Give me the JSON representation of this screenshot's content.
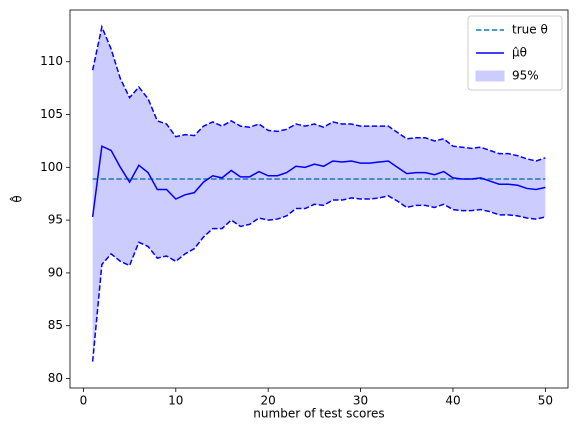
{
  "chart_data": {
    "type": "line",
    "x_label": "number of test scores",
    "y_label": "θ̂",
    "x": [
      1,
      2,
      3,
      4,
      5,
      6,
      7,
      8,
      9,
      10,
      11,
      12,
      13,
      14,
      15,
      16,
      17,
      18,
      19,
      20,
      21,
      22,
      23,
      24,
      25,
      26,
      27,
      28,
      29,
      30,
      31,
      32,
      33,
      34,
      35,
      36,
      37,
      38,
      39,
      40,
      41,
      42,
      43,
      44,
      45,
      46,
      47,
      48,
      49,
      50
    ],
    "series": [
      {
        "name": "true θ",
        "type": "hline",
        "value": 98.9,
        "color": "#1f77b4"
      },
      {
        "name": "μ̂θ",
        "type": "line",
        "color": "#0000ff",
        "values": [
          95.3,
          102.0,
          101.6,
          100.0,
          98.6,
          100.2,
          99.5,
          97.9,
          97.9,
          97.0,
          97.4,
          97.6,
          98.6,
          99.2,
          99.0,
          99.7,
          99.1,
          99.1,
          99.6,
          99.2,
          99.2,
          99.5,
          100.1,
          100.0,
          100.3,
          100.1,
          100.6,
          100.5,
          100.6,
          100.4,
          100.4,
          100.5,
          100.6,
          100.0,
          99.4,
          99.5,
          99.5,
          99.3,
          99.6,
          99.0,
          98.9,
          98.9,
          99.0,
          98.7,
          98.4,
          98.4,
          98.3,
          98.0,
          97.9,
          98.1
        ]
      },
      {
        "name": "95%",
        "type": "band",
        "color": "#ccccff",
        "edge_color": "#0000ff",
        "upper": [
          109.2,
          113.3,
          111.2,
          108.4,
          106.6,
          107.6,
          106.5,
          104.4,
          104.1,
          102.9,
          103.1,
          103.0,
          103.9,
          104.3,
          103.9,
          104.4,
          103.9,
          103.8,
          104.1,
          103.5,
          103.4,
          103.6,
          104.1,
          103.9,
          104.1,
          103.8,
          104.3,
          104.1,
          104.1,
          103.9,
          103.9,
          103.9,
          103.9,
          103.3,
          102.7,
          102.8,
          102.8,
          102.5,
          102.7,
          102.0,
          101.9,
          101.8,
          101.9,
          101.6,
          101.3,
          101.3,
          101.1,
          100.8,
          100.6,
          100.9
        ],
        "lower": [
          81.6,
          90.8,
          91.8,
          91.1,
          90.7,
          92.9,
          92.5,
          91.4,
          91.6,
          91.1,
          91.8,
          92.3,
          93.4,
          94.2,
          94.2,
          95.0,
          94.4,
          94.6,
          95.2,
          95.0,
          95.1,
          95.4,
          96.1,
          96.1,
          96.5,
          96.4,
          96.9,
          96.9,
          97.1,
          97.0,
          97.0,
          97.1,
          97.3,
          96.8,
          96.2,
          96.4,
          96.4,
          96.2,
          96.5,
          96.0,
          95.9,
          95.9,
          96.0,
          95.8,
          95.5,
          95.5,
          95.4,
          95.2,
          95.1,
          95.3
        ]
      }
    ],
    "xlim": [
      -1.45,
      52.45
    ],
    "xticks": [
      0,
      10,
      20,
      30,
      40,
      50
    ],
    "ylim": [
      79.1,
      114.9
    ],
    "yticks": [
      80,
      85,
      90,
      95,
      100,
      105,
      110
    ],
    "legend": "upper right"
  }
}
